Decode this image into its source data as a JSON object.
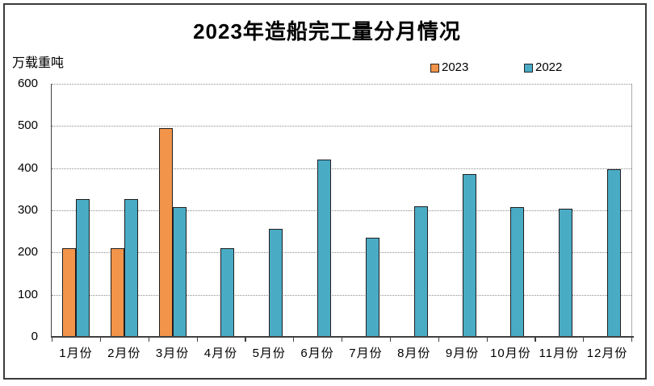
{
  "chart_data": {
    "type": "bar",
    "title": "2023年造船完工量分月情况",
    "unit_label": "万载重吨",
    "categories": [
      "1月份",
      "2月份",
      "3月份",
      "4月份",
      "5月份",
      "6月份",
      "7月份",
      "8月份",
      "9月份",
      "10月份",
      "11月份",
      "12月份"
    ],
    "series": [
      {
        "name": "2023",
        "color": "#F2944A",
        "values": [
          211,
          211,
          495,
          null,
          null,
          null,
          null,
          null,
          null,
          null,
          null,
          null
        ]
      },
      {
        "name": "2022",
        "color": "#4AABC5",
        "values": [
          326,
          327,
          308,
          210,
          257,
          421,
          235,
          310,
          386,
          308,
          303,
          397
        ]
      }
    ],
    "ylim": [
      0,
      600
    ],
    "yticks": [
      0,
      100,
      200,
      300,
      400,
      500,
      600
    ],
    "grid": "horizontal-dotted",
    "legend_position": "top-right",
    "bar_border_color": "#1f1f1f",
    "axis_color": "#404040",
    "gridline_color": "#8c8c8c"
  }
}
